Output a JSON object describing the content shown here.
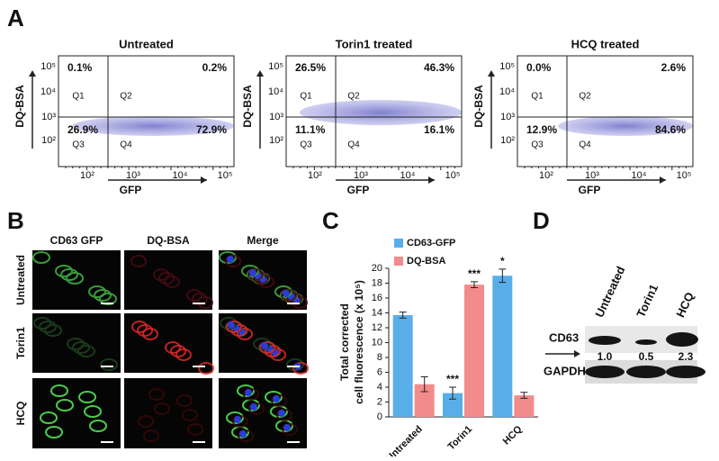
{
  "panel_labels": [
    "A",
    "B",
    "C",
    "D"
  ],
  "flow": {
    "x_label": "GFP",
    "y_label": "DQ-BSA",
    "quadrant_names": [
      "Q1",
      "Q2",
      "Q3",
      "Q4"
    ],
    "axis_ticks": [
      "10²",
      "10³",
      "10⁴",
      "10⁵"
    ],
    "plots": [
      {
        "title": "Untreated",
        "quadrants": [
          "0.1%",
          "0.2%",
          "26.9%",
          "72.9%"
        ]
      },
      {
        "title": "Torin1 treated",
        "quadrants": [
          "26.5%",
          "46.3%",
          "11.1%",
          "16.1%"
        ]
      },
      {
        "title": "HCQ treated",
        "quadrants": [
          "0.0%",
          "2.6%",
          "12.9%",
          "84.6%"
        ]
      }
    ]
  },
  "microscopy": {
    "columns": [
      "CD63 GFP",
      "DQ-BSA",
      "Merge"
    ],
    "rows": [
      "Untreated",
      "Torin1",
      "HCQ"
    ]
  },
  "chart_data": {
    "type": "bar",
    "y_label": [
      "Total corrected",
      "cell fluorescence (x 10⁵)"
    ],
    "categories": [
      "Untreated",
      "Torin1",
      "HCQ"
    ],
    "series": [
      {
        "name": "CD63-GFP",
        "color": "#5aaee8",
        "values": [
          13.7,
          3.2,
          19.0
        ],
        "errors": [
          0.4,
          0.8,
          0.9
        ]
      },
      {
        "name": "DQ-BSA",
        "color": "#f28b8b",
        "values": [
          4.4,
          17.8,
          2.9
        ],
        "errors": [
          1.0,
          0.4,
          0.4
        ]
      }
    ],
    "annotations": [
      {
        "text": "***",
        "series": 0,
        "category": 1
      },
      {
        "text": "***",
        "series": 1,
        "category": 1
      },
      {
        "text": "*",
        "series": 0,
        "category": 2
      }
    ],
    "ylim": [
      0,
      20
    ],
    "yticks": [
      0,
      2,
      4,
      6,
      8,
      10,
      12,
      14,
      16,
      18,
      20
    ],
    "legend": "upper left"
  },
  "blot": {
    "lanes": [
      "Untreated",
      "Torin1",
      "HCQ"
    ],
    "rows": [
      "CD63",
      "GAPDH"
    ],
    "ratios": [
      "1.0",
      "0.5",
      "2.3"
    ]
  }
}
